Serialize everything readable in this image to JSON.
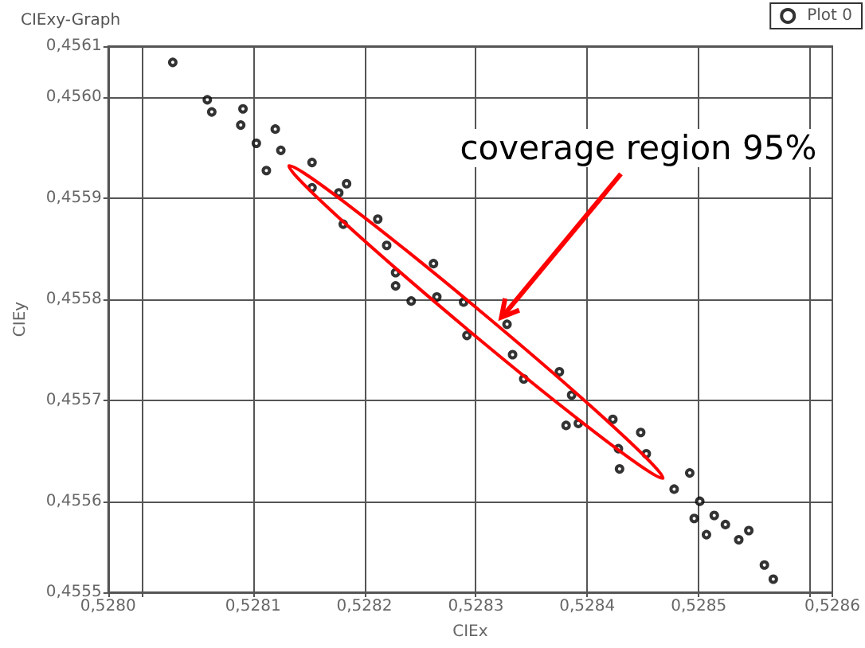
{
  "chart_data": {
    "type": "scatter",
    "title": "CIExy-Graph",
    "xlabel": "CIEx",
    "ylabel": "CIEy",
    "xlim": [
      0.52797,
      0.52862
    ],
    "xticks": [
      {
        "value": 0.52797,
        "label": "0,5280"
      },
      {
        "value": 0.528,
        "label": null
      },
      {
        "value": 0.5281,
        "label": "0,5281"
      },
      {
        "value": 0.5282,
        "label": "0,5282"
      },
      {
        "value": 0.5283,
        "label": "0,5283"
      },
      {
        "value": 0.5284,
        "label": "0,5284"
      },
      {
        "value": 0.5285,
        "label": "0,5285"
      },
      {
        "value": 0.5286,
        "label": null
      },
      {
        "value": 0.52862,
        "label": "0,5286"
      }
    ],
    "ylim": [
      0.45551,
      0.45605
    ],
    "yticks": [
      {
        "value": 0.45551,
        "label": "0,4555"
      },
      {
        "value": 0.4556,
        "label": "0,4556"
      },
      {
        "value": 0.4557,
        "label": "0,4557"
      },
      {
        "value": 0.4558,
        "label": "0,4558"
      },
      {
        "value": 0.4559,
        "label": "0,4559"
      },
      {
        "value": 0.456,
        "label": "0,4560"
      },
      {
        "value": 0.45605,
        "label": "0,4561"
      }
    ],
    "grid": true,
    "legend": "top right",
    "marker": "circle",
    "annotations": [
      {
        "text": "coverage region 95%",
        "x": 0.528323,
        "y": 0.455782
      }
    ],
    "series": [
      {
        "name": "Plot 0",
        "color": "#000000",
        "x": [
          0.528028,
          0.528059,
          0.528063,
          0.528091,
          0.528089,
          0.52812,
          0.528112,
          0.528153,
          0.528184,
          0.528228,
          0.528242,
          0.528381,
          0.528429,
          0.528448,
          0.528492,
          0.528496,
          0.528507,
          0.528524,
          0.528536,
          0.528545,
          0.528559,
          0.528567,
          0.528514,
          0.528478,
          0.528153,
          0.528177,
          0.528181,
          0.528212,
          0.52822,
          0.528228,
          0.528262,
          0.528265,
          0.528289,
          0.528292,
          0.528328,
          0.528333,
          0.528343,
          0.528375,
          0.528386,
          0.528392,
          0.528423,
          0.528428,
          0.528453,
          0.528501,
          0.528125,
          0.528103
        ],
        "values": [
          0.456034,
          0.455997,
          0.455985,
          0.455988,
          0.455972,
          0.455968,
          0.455927,
          0.455935,
          0.455914,
          0.455813,
          0.455798,
          0.455675,
          0.455632,
          0.455668,
          0.455628,
          0.455583,
          0.455567,
          0.455577,
          0.455562,
          0.455571,
          0.455537,
          0.455523,
          0.455586,
          0.455612,
          0.45591,
          0.455905,
          0.455874,
          0.455879,
          0.455853,
          0.455826,
          0.455835,
          0.455802,
          0.455797,
          0.455764,
          0.455775,
          0.455745,
          0.455721,
          0.455728,
          0.455705,
          0.455677,
          0.455681,
          0.455652,
          0.455647,
          0.4556,
          0.455947,
          0.455954
        ]
      }
    ]
  }
}
